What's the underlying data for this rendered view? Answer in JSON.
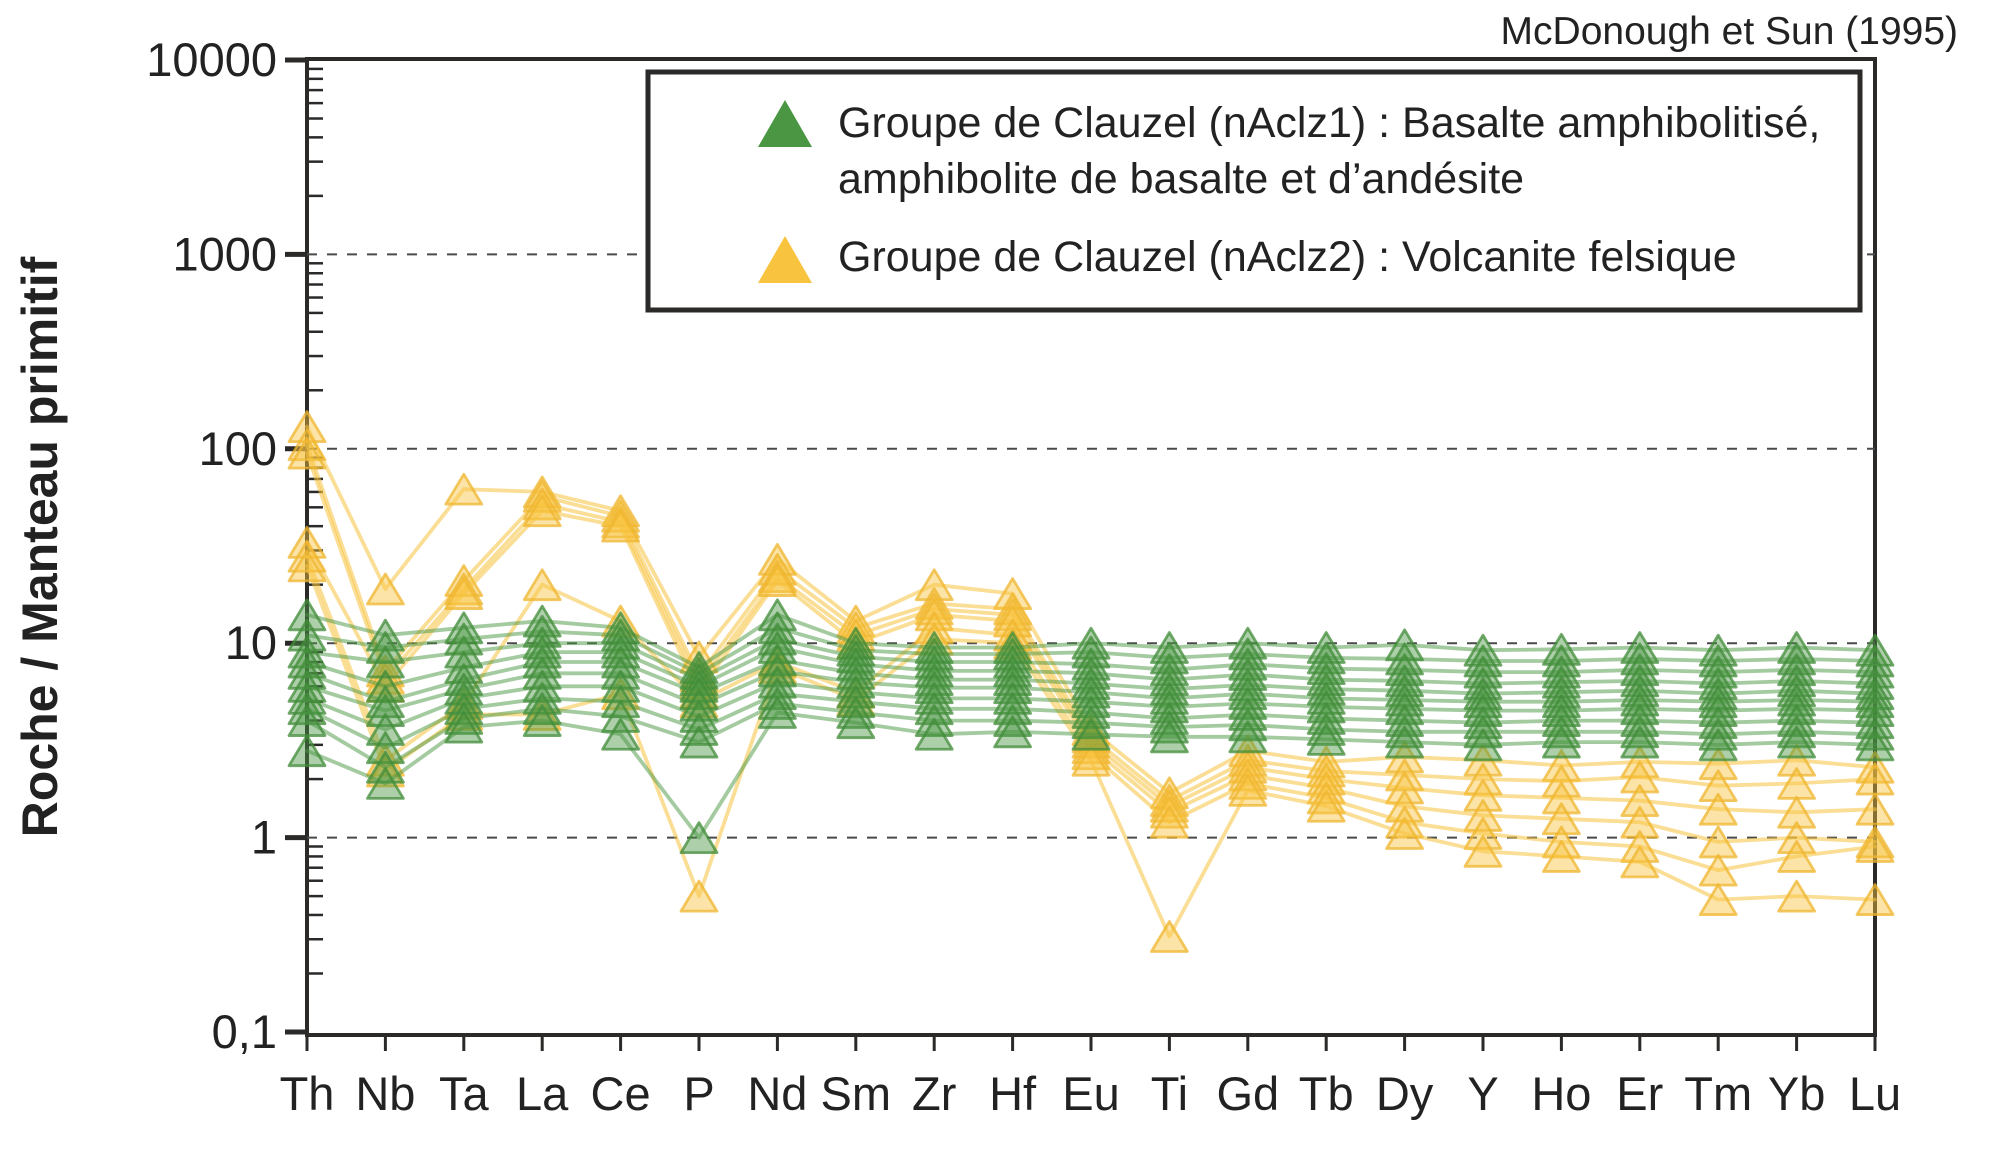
{
  "attribution": "McDonough et Sun (1995)",
  "y_axis_title": "Roche / Manteau primitif",
  "legend": {
    "entries": [
      {
        "label_line1": "Groupe de Clauzel (nAclz1) : Basalte amphibolitisé,",
        "label_line2": "amphibolite de basalte et d’andésite",
        "color": "#4a9642",
        "marker": "triangle-icon"
      },
      {
        "label_line1": "Groupe de Clauzel (nAclz2) : Volcanite felsique",
        "label_line2": "",
        "color": "#f8c33e",
        "marker": "triangle-icon"
      }
    ]
  },
  "colors": {
    "green_fill": "#4a9642",
    "green_stroke": "#418c3a",
    "yellow_fill": "#f8c33e",
    "yellow_stroke": "#efb52f",
    "axis": "#2b2a28",
    "grid": "#4a4a4a"
  },
  "chart_data": {
    "type": "line",
    "title": "",
    "xlabel": "",
    "ylabel": "Roche / Manteau primitif",
    "x_scale": "categorical",
    "y_scale": "log",
    "ylim": [
      0.1,
      10000
    ],
    "grid": "horizontal dashed lines at 1, 10, 100, 1000",
    "legend_position": "top-center-inside",
    "categories": [
      "Th",
      "Nb",
      "Ta",
      "La",
      "Ce",
      "P",
      "Nd",
      "Sm",
      "Zr",
      "Hf",
      "Eu",
      "Ti",
      "Gd",
      "Tb",
      "Dy",
      "Y",
      "Ho",
      "Er",
      "Tm",
      "Yb",
      "Lu"
    ],
    "y_ticks": [
      "10000",
      "1000",
      "100",
      "10",
      "1",
      "0,1"
    ],
    "y_tick_values": [
      10000,
      1000,
      100,
      10,
      1,
      0.1
    ],
    "gridline_values": [
      1000,
      100,
      10,
      1
    ],
    "series": [
      {
        "name": "nAclz1-sample-1",
        "group": "nAclz1",
        "color": "#4a9642",
        "stroke": "#418c3a",
        "values": [
          14,
          11,
          12,
          13,
          12,
          7.5,
          14,
          10,
          9.5,
          9.5,
          10,
          9.5,
          10,
          9.5,
          9.8,
          9.2,
          9.3,
          9.5,
          9.2,
          9.5,
          9.2
        ]
      },
      {
        "name": "nAclz1-sample-2",
        "group": "nAclz1",
        "color": "#4a9642",
        "stroke": "#418c3a",
        "values": [
          11,
          9.5,
          10.5,
          11.5,
          11,
          7,
          12,
          9.2,
          8.8,
          8.8,
          9,
          8.4,
          8.8,
          8.4,
          8.3,
          8.1,
          8.1,
          8.3,
          8.1,
          8.3,
          8.1
        ]
      },
      {
        "name": "nAclz1-sample-3",
        "group": "nAclz1",
        "color": "#4a9642",
        "stroke": "#418c3a",
        "values": [
          9,
          8,
          9,
          10,
          10,
          6.5,
          10.5,
          8.5,
          8,
          8,
          7.8,
          7.3,
          7.8,
          7.4,
          7.3,
          7.1,
          7.1,
          7.3,
          7.1,
          7.3,
          7.1
        ]
      },
      {
        "name": "nAclz1-sample-4",
        "group": "nAclz1",
        "color": "#4a9642",
        "stroke": "#418c3a",
        "values": [
          8,
          6,
          7.5,
          9,
          9,
          6,
          9.5,
          7.8,
          7.2,
          7.2,
          7,
          6.5,
          6.9,
          6.5,
          6.4,
          6.2,
          6.3,
          6.4,
          6.2,
          6.4,
          6.2
        ]
      },
      {
        "name": "nAclz1-sample-5",
        "group": "nAclz1",
        "color": "#4a9642",
        "stroke": "#418c3a",
        "values": [
          7,
          5,
          6.5,
          8,
          8,
          5.5,
          8.2,
          7,
          6.5,
          6.5,
          6.2,
          5.8,
          6.1,
          5.8,
          5.7,
          5.5,
          5.6,
          5.7,
          5.5,
          5.7,
          5.5
        ]
      },
      {
        "name": "nAclz1-sample-6",
        "group": "nAclz1",
        "color": "#4a9642",
        "stroke": "#418c3a",
        "values": [
          6,
          4.5,
          5.8,
          7,
          7,
          4.8,
          7.2,
          6.3,
          5.9,
          5.9,
          5.6,
          5.2,
          5.5,
          5.2,
          5.1,
          5,
          5,
          5.1,
          5,
          5.1,
          5
        ]
      },
      {
        "name": "nAclz1-sample-7",
        "group": "nAclz1",
        "color": "#4a9642",
        "stroke": "#418c3a",
        "values": [
          5.2,
          3.6,
          5.2,
          6,
          6,
          4.2,
          6.3,
          5.6,
          5.2,
          5.2,
          5,
          4.7,
          4.9,
          4.7,
          4.6,
          4.5,
          4.5,
          4.6,
          4.5,
          4.6,
          4.5
        ]
      },
      {
        "name": "nAclz1-sample-8",
        "group": "nAclz1",
        "color": "#4a9642",
        "stroke": "#418c3a",
        "values": [
          4.6,
          2.9,
          4.6,
          5.2,
          5,
          3.6,
          5.5,
          5,
          4.6,
          4.6,
          4.4,
          4.1,
          4.3,
          4.1,
          4,
          3.9,
          4,
          4,
          3.9,
          4,
          3.9
        ]
      },
      {
        "name": "nAclz1-sample-9",
        "group": "nAclz1",
        "color": "#4a9642",
        "stroke": "#418c3a",
        "values": [
          4,
          2.3,
          4.1,
          4.6,
          4.2,
          3.1,
          4.9,
          4.4,
          4,
          4,
          3.9,
          3.7,
          3.8,
          3.6,
          3.5,
          3.5,
          3.5,
          3.5,
          3.4,
          3.5,
          3.4
        ]
      },
      {
        "name": "nAclz1-sample-10",
        "group": "nAclz1",
        "color": "#4a9642",
        "stroke": "#418c3a",
        "values": [
          2.8,
          1.9,
          3.7,
          4,
          3.4,
          1.0,
          4.4,
          3.9,
          3.4,
          3.5,
          3.4,
          3.3,
          3.3,
          3.2,
          3.1,
          3,
          3.1,
          3.1,
          3,
          3.1,
          3
        ]
      },
      {
        "name": "nAclz2-sample-1",
        "group": "nAclz2",
        "color": "#f8c33e",
        "stroke": "#efb52f",
        "values": [
          130,
          19,
          62,
          60,
          48,
          8.5,
          27,
          13,
          20,
          18,
          3.6,
          1.7,
          2.8,
          2.45,
          2.6,
          2.5,
          2.35,
          2.45,
          2.4,
          2.5,
          2.3
        ]
      },
      {
        "name": "nAclz2-sample-2",
        "group": "nAclz2",
        "color": "#f8c33e",
        "stroke": "#efb52f",
        "values": [
          105,
          7.2,
          21,
          57,
          45,
          6.8,
          24,
          12,
          16,
          15,
          3.3,
          1.55,
          2.5,
          2.2,
          2.1,
          2,
          1.95,
          2.05,
          1.85,
          1.9,
          2
        ]
      },
      {
        "name": "nAclz2-sample-3",
        "group": "nAclz2",
        "color": "#f8c33e",
        "stroke": "#efb52f",
        "values": [
          95,
          6.6,
          19,
          52,
          42,
          6.2,
          22,
          11,
          15,
          14,
          3.1,
          1.45,
          2.3,
          2,
          1.8,
          1.65,
          1.6,
          1.55,
          1.4,
          1.35,
          1.4
        ]
      },
      {
        "name": "nAclz2-sample-4",
        "group": "nAclz2",
        "color": "#f8c33e",
        "stroke": "#efb52f",
        "values": [
          33,
          6,
          18,
          48,
          40,
          5.6,
          21,
          10,
          14,
          13,
          2.9,
          1.35,
          2.1,
          1.8,
          1.45,
          1.3,
          1.25,
          1.2,
          0.95,
          1,
          0.95
        ]
      },
      {
        "name": "nAclz2-sample-5",
        "group": "nAclz2",
        "color": "#f8c33e",
        "stroke": "#efb52f",
        "values": [
          28,
          2.5,
          4.9,
          20,
          13,
          5,
          8,
          5.6,
          12,
          11,
          2.7,
          1.2,
          1.9,
          1.6,
          1.2,
          1.05,
          0.95,
          0.9,
          0.68,
          0.8,
          0.9
        ]
      },
      {
        "name": "nAclz2-sample-6",
        "group": "nAclz2",
        "color": "#f8c33e",
        "stroke": "#efb52f",
        "values": [
          25,
          2.2,
          4.3,
          4.3,
          5.5,
          0.5,
          7.5,
          5.1,
          10.5,
          10,
          2.5,
          0.31,
          1.75,
          1.45,
          1.05,
          0.85,
          0.8,
          0.75,
          0.48,
          0.5,
          0.48
        ]
      }
    ]
  }
}
